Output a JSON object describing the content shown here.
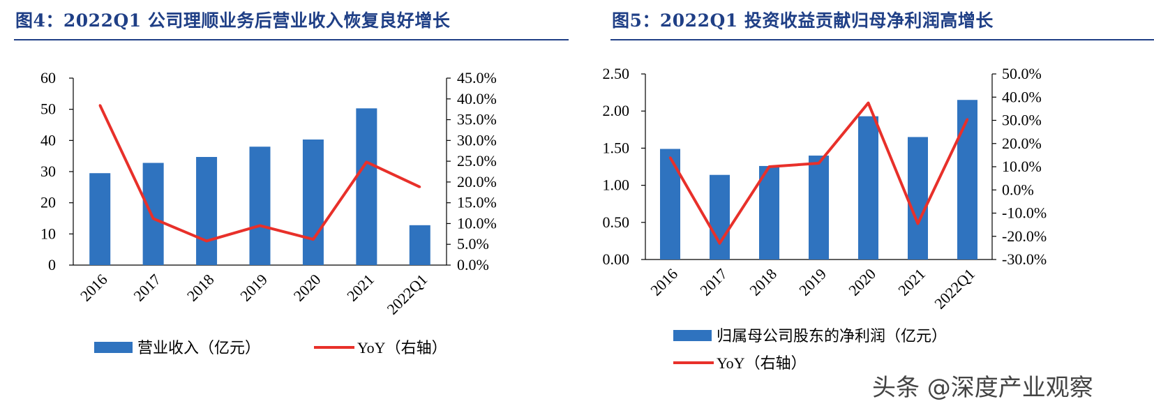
{
  "colors": {
    "bar": "#2f73bf",
    "line": "#e8302a",
    "title": "#1f3f86",
    "axis": "#000000"
  },
  "chart_data": [
    {
      "type": "bar",
      "title": "图4：2022Q1 公司理顺业务后营业收入恢复良好增长",
      "categories": [
        "2016",
        "2017",
        "2018",
        "2019",
        "2020",
        "2021",
        "2022Q1"
      ],
      "series": [
        {
          "name": "营业收入（亿元）",
          "type": "bar",
          "axis": "left",
          "values": [
            29.5,
            32.8,
            34.7,
            38.0,
            40.3,
            50.3,
            12.8
          ]
        },
        {
          "name": "YoY（右轴）",
          "type": "line",
          "axis": "right",
          "values": [
            0.385,
            0.112,
            0.058,
            0.095,
            0.062,
            0.248,
            0.188
          ]
        }
      ],
      "left_axis": {
        "min": 0,
        "max": 60,
        "step": 10,
        "tick_labels": [
          "0",
          "10",
          "20",
          "30",
          "40",
          "50",
          "60"
        ]
      },
      "right_axis": {
        "min": 0,
        "max": 0.45,
        "step": 0.05,
        "tick_labels": [
          "0.0%",
          "5.0%",
          "10.0%",
          "15.0%",
          "20.0%",
          "25.0%",
          "30.0%",
          "35.0%",
          "40.0%",
          "45.0%"
        ]
      },
      "legend_position": "bottom",
      "grid": false
    },
    {
      "type": "bar",
      "title": "图5：2022Q1 投资收益贡献归母净利润高增长",
      "categories": [
        "2016",
        "2017",
        "2018",
        "2019",
        "2020",
        "2021",
        "2022Q1"
      ],
      "series": [
        {
          "name": "归属母公司股东的净利润（亿元）",
          "type": "bar",
          "axis": "left",
          "values": [
            1.49,
            1.14,
            1.26,
            1.4,
            1.93,
            1.65,
            2.15
          ]
        },
        {
          "name": "YoY（右轴）",
          "type": "line",
          "axis": "right",
          "values": [
            0.14,
            -0.23,
            0.1,
            0.115,
            0.375,
            -0.145,
            0.305
          ]
        }
      ],
      "left_axis": {
        "min": 0,
        "max": 2.5,
        "step": 0.5,
        "tick_labels": [
          "0.00",
          "0.50",
          "1.00",
          "1.50",
          "2.00",
          "2.50"
        ]
      },
      "right_axis": {
        "min": -0.3,
        "max": 0.5,
        "step": 0.1,
        "tick_labels": [
          "-30.0%",
          "-20.0%",
          "-10.0%",
          "0.0%",
          "10.0%",
          "20.0%",
          "30.0%",
          "40.0%",
          "50.0%"
        ]
      },
      "legend_position": "bottom",
      "grid": false
    }
  ],
  "watermark": "头条 @深度产业观察"
}
